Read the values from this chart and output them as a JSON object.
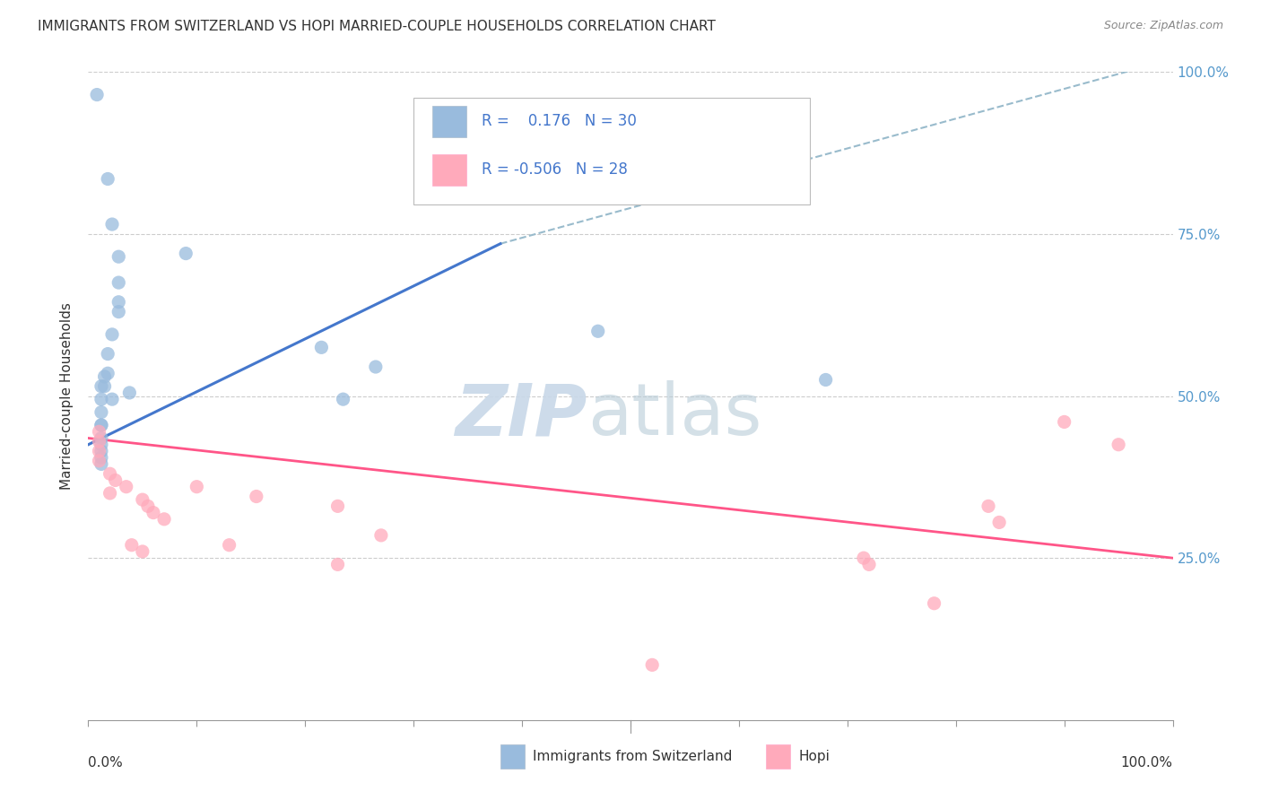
{
  "title": "IMMIGRANTS FROM SWITZERLAND VS HOPI MARRIED-COUPLE HOUSEHOLDS CORRELATION CHART",
  "source": "Source: ZipAtlas.com",
  "ylabel": "Married-couple Households",
  "xlim": [
    0,
    1
  ],
  "ylim": [
    0,
    1
  ],
  "blue_color": "#99bbdd",
  "pink_color": "#ffaabb",
  "blue_line_color": "#4477cc",
  "pink_line_color": "#ff5588",
  "dashed_line_color": "#99bbcc",
  "right_tick_color": "#5599cc",
  "scatter_blue": [
    [
      0.008,
      0.965
    ],
    [
      0.018,
      0.835
    ],
    [
      0.022,
      0.765
    ],
    [
      0.028,
      0.715
    ],
    [
      0.028,
      0.675
    ],
    [
      0.028,
      0.645
    ],
    [
      0.022,
      0.595
    ],
    [
      0.018,
      0.565
    ],
    [
      0.018,
      0.535
    ],
    [
      0.015,
      0.515
    ],
    [
      0.012,
      0.515
    ],
    [
      0.012,
      0.495
    ],
    [
      0.012,
      0.475
    ],
    [
      0.012,
      0.455
    ],
    [
      0.012,
      0.435
    ],
    [
      0.012,
      0.425
    ],
    [
      0.012,
      0.415
    ],
    [
      0.012,
      0.405
    ],
    [
      0.012,
      0.395
    ],
    [
      0.015,
      0.53
    ],
    [
      0.022,
      0.495
    ],
    [
      0.038,
      0.505
    ],
    [
      0.09,
      0.72
    ],
    [
      0.215,
      0.575
    ],
    [
      0.235,
      0.495
    ],
    [
      0.265,
      0.545
    ],
    [
      0.47,
      0.6
    ],
    [
      0.68,
      0.525
    ],
    [
      0.012,
      0.455
    ],
    [
      0.028,
      0.63
    ]
  ],
  "scatter_pink": [
    [
      0.01,
      0.445
    ],
    [
      0.01,
      0.43
    ],
    [
      0.01,
      0.415
    ],
    [
      0.01,
      0.4
    ],
    [
      0.02,
      0.38
    ],
    [
      0.025,
      0.37
    ],
    [
      0.035,
      0.36
    ],
    [
      0.02,
      0.35
    ],
    [
      0.05,
      0.34
    ],
    [
      0.055,
      0.33
    ],
    [
      0.06,
      0.32
    ],
    [
      0.07,
      0.31
    ],
    [
      0.04,
      0.27
    ],
    [
      0.05,
      0.26
    ],
    [
      0.1,
      0.36
    ],
    [
      0.13,
      0.27
    ],
    [
      0.155,
      0.345
    ],
    [
      0.23,
      0.24
    ],
    [
      0.23,
      0.33
    ],
    [
      0.27,
      0.285
    ],
    [
      0.52,
      0.085
    ],
    [
      0.715,
      0.25
    ],
    [
      0.72,
      0.24
    ],
    [
      0.78,
      0.18
    ],
    [
      0.83,
      0.33
    ],
    [
      0.84,
      0.305
    ],
    [
      0.9,
      0.46
    ],
    [
      0.95,
      0.425
    ]
  ],
  "blue_trend_x": [
    0.0,
    0.38
  ],
  "blue_trend_y": [
    0.425,
    0.735
  ],
  "pink_trend_x": [
    0.0,
    1.0
  ],
  "pink_trend_y": [
    0.435,
    0.25
  ],
  "dashed_trend_x": [
    0.38,
    1.0
  ],
  "dashed_trend_y": [
    0.735,
    1.02
  ],
  "legend_items": [
    {
      "label": "R =   0.176   N = 30",
      "color": "#99bbdd"
    },
    {
      "label": "R = -0.506   N = 28",
      "color": "#ffaabb"
    }
  ],
  "bottom_legend": [
    {
      "label": "Immigrants from Switzerland",
      "color": "#99bbdd"
    },
    {
      "label": "Hopi",
      "color": "#ffaabb"
    }
  ]
}
